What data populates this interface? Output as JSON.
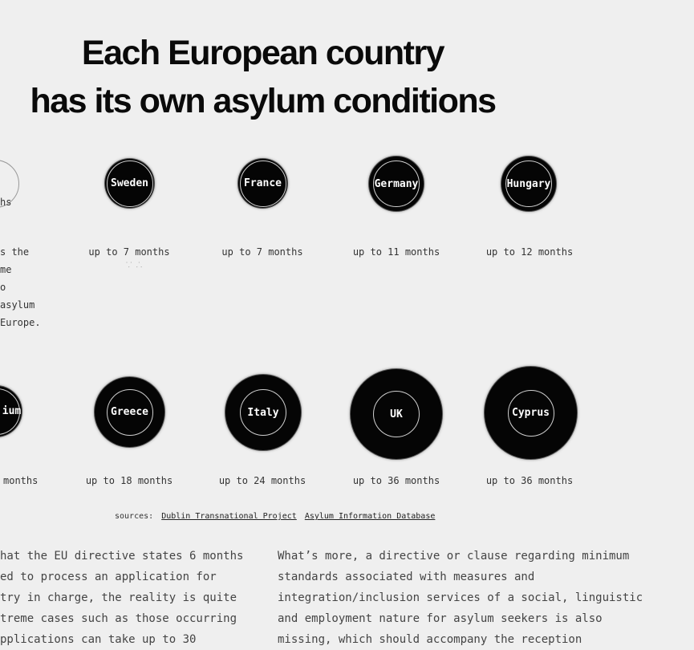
{
  "title": {
    "line1": "Each European country",
    "line2": "has its own asylum conditions"
  },
  "row1": {
    "partial_duration": "hs",
    "countries": [
      {
        "name": "Sweden",
        "duration": "up to 7 months"
      },
      {
        "name": "France",
        "duration": "up to 7 months"
      },
      {
        "name": "Germany",
        "duration": "up to 11 months"
      },
      {
        "name": "Hungary",
        "duration": "up to 12 months"
      }
    ]
  },
  "note_lines": [
    "s the",
    "me",
    "o",
    " asylum",
    " Europe."
  ],
  "row2": {
    "partial_name": "ium",
    "partial_duration": "months",
    "countries": [
      {
        "name": "Greece",
        "duration": "up to 18 months"
      },
      {
        "name": "Italy",
        "duration": "up to 24 months"
      },
      {
        "name": "UK",
        "duration": "up to 36 months"
      },
      {
        "name": "Cyprus",
        "duration": "up to 36 months"
      }
    ]
  },
  "sources": {
    "label": "sources:",
    "link1": "Dublin Transnational Project",
    "link2": "Asylum Information Database"
  },
  "paragraph_left": [
    "hat the EU directive states 6 months",
    "ed to process an application for",
    "try in charge, the reality is quite",
    "treme cases such as those occurring",
    "pplications can take up to 30"
  ],
  "paragraph_right": [
    "What’s more, a directive or clause regarding minimum",
    "standards associated with measures and",
    "integration/inclusion services of a social, linguistic",
    "and employment nature for asylum seekers is also",
    "missing, which should accompany the reception"
  ]
}
